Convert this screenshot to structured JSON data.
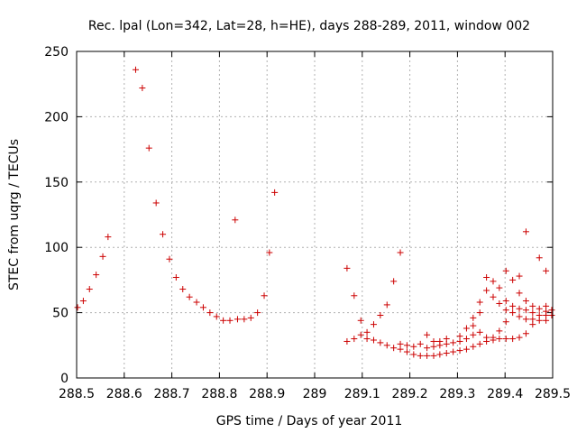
{
  "chart_data": {
    "type": "scatter",
    "title": "Rec. lpal (Lon=342, Lat=28, h=HE), days 288-289, 2011, window 002",
    "xlabel": "GPS time / Days of year 2011",
    "ylabel": "STEC from uqrg / TECUs",
    "xlim": [
      288.5,
      289.5
    ],
    "ylim": [
      0,
      250
    ],
    "grid": true,
    "marker": "+",
    "color": "#cc0000",
    "x_ticks": [
      288.5,
      288.6,
      288.7,
      288.8,
      288.9,
      289.0,
      289.1,
      289.2,
      289.3,
      289.4,
      289.5
    ],
    "x_tick_labels": [
      "288.5",
      "288.6",
      "288.7",
      "288.8",
      "288.9",
      "289",
      "289.1",
      "289.2",
      "289.3",
      "289.4",
      "289.5"
    ],
    "y_ticks": [
      0,
      50,
      100,
      150,
      200,
      250
    ],
    "y_tick_labels": [
      "0",
      "50",
      "100",
      "150",
      "200",
      "250"
    ],
    "points": [
      [
        288.502,
        54
      ],
      [
        288.514,
        59
      ],
      [
        288.527,
        68
      ],
      [
        288.541,
        79
      ],
      [
        288.555,
        93
      ],
      [
        288.566,
        108
      ],
      [
        288.624,
        236
      ],
      [
        288.638,
        222
      ],
      [
        288.652,
        176
      ],
      [
        288.667,
        134
      ],
      [
        288.681,
        110
      ],
      [
        288.695,
        91
      ],
      [
        288.709,
        77
      ],
      [
        288.723,
        68
      ],
      [
        288.737,
        62
      ],
      [
        288.752,
        58
      ],
      [
        288.766,
        54
      ],
      [
        288.78,
        50
      ],
      [
        288.794,
        47
      ],
      [
        288.808,
        44
      ],
      [
        288.822,
        44
      ],
      [
        288.833,
        121
      ],
      [
        288.838,
        45
      ],
      [
        288.852,
        45
      ],
      [
        288.866,
        46
      ],
      [
        288.88,
        50
      ],
      [
        288.894,
        63
      ],
      [
        288.905,
        96
      ],
      [
        288.916,
        142
      ],
      [
        289.068,
        84
      ],
      [
        289.068,
        28
      ],
      [
        289.083,
        63
      ],
      [
        289.083,
        30
      ],
      [
        289.097,
        44
      ],
      [
        289.097,
        33
      ],
      [
        289.11,
        35
      ],
      [
        289.11,
        30
      ],
      [
        289.124,
        41
      ],
      [
        289.124,
        29
      ],
      [
        289.138,
        48
      ],
      [
        289.138,
        27
      ],
      [
        289.152,
        56
      ],
      [
        289.152,
        25
      ],
      [
        289.166,
        74
      ],
      [
        289.166,
        23
      ],
      [
        289.18,
        96
      ],
      [
        289.18,
        22
      ],
      [
        289.18,
        26
      ],
      [
        289.194,
        20
      ],
      [
        289.194,
        25
      ],
      [
        289.208,
        18
      ],
      [
        289.208,
        24
      ],
      [
        289.222,
        17
      ],
      [
        289.222,
        26
      ],
      [
        289.236,
        17
      ],
      [
        289.236,
        33
      ],
      [
        289.236,
        23
      ],
      [
        289.25,
        17
      ],
      [
        289.25,
        24
      ],
      [
        289.25,
        28
      ],
      [
        289.263,
        18
      ],
      [
        289.263,
        25
      ],
      [
        289.263,
        28
      ],
      [
        289.277,
        19
      ],
      [
        289.277,
        26
      ],
      [
        289.277,
        30
      ],
      [
        289.291,
        20
      ],
      [
        289.291,
        27
      ],
      [
        289.305,
        21
      ],
      [
        289.305,
        28
      ],
      [
        289.305,
        32
      ],
      [
        289.319,
        22
      ],
      [
        289.319,
        30
      ],
      [
        289.319,
        38
      ],
      [
        289.333,
        24
      ],
      [
        289.333,
        33
      ],
      [
        289.333,
        40
      ],
      [
        289.333,
        46
      ],
      [
        289.347,
        26
      ],
      [
        289.347,
        35
      ],
      [
        289.347,
        50
      ],
      [
        289.347,
        58
      ],
      [
        289.361,
        28
      ],
      [
        289.361,
        31
      ],
      [
        289.361,
        67
      ],
      [
        289.361,
        77
      ],
      [
        289.375,
        29
      ],
      [
        289.375,
        31
      ],
      [
        289.375,
        62
      ],
      [
        289.375,
        74
      ],
      [
        289.388,
        30
      ],
      [
        289.388,
        36
      ],
      [
        289.388,
        57
      ],
      [
        289.388,
        69
      ],
      [
        289.402,
        30
      ],
      [
        289.402,
        43
      ],
      [
        289.402,
        52
      ],
      [
        289.402,
        59
      ],
      [
        289.402,
        82
      ],
      [
        289.416,
        30
      ],
      [
        289.416,
        50
      ],
      [
        289.416,
        55
      ],
      [
        289.416,
        75
      ],
      [
        289.43,
        31
      ],
      [
        289.43,
        47
      ],
      [
        289.43,
        53
      ],
      [
        289.43,
        65
      ],
      [
        289.43,
        78
      ],
      [
        289.444,
        34
      ],
      [
        289.444,
        45
      ],
      [
        289.444,
        52
      ],
      [
        289.444,
        59
      ],
      [
        289.444,
        112
      ],
      [
        289.458,
        41
      ],
      [
        289.458,
        45
      ],
      [
        289.458,
        50
      ],
      [
        289.458,
        55
      ],
      [
        289.472,
        44
      ],
      [
        289.472,
        48
      ],
      [
        289.472,
        53
      ],
      [
        289.472,
        92
      ],
      [
        289.486,
        44
      ],
      [
        289.486,
        48
      ],
      [
        289.486,
        51
      ],
      [
        289.486,
        55
      ],
      [
        289.486,
        82
      ],
      [
        289.498,
        48
      ],
      [
        289.498,
        52
      ]
    ]
  }
}
